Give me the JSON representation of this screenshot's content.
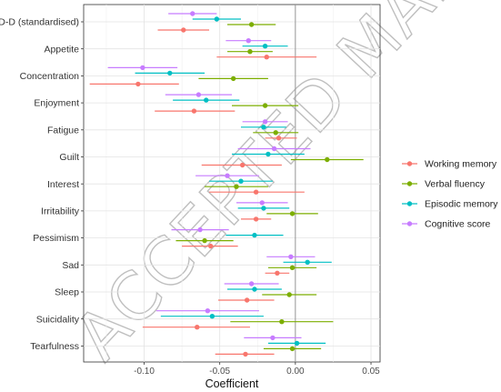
{
  "chart_data": {
    "type": "scatter",
    "xlabel": "Coefficient",
    "xlim": [
      -0.14,
      0.056
    ],
    "x_ticks": [
      "-0.10",
      "-0.05",
      "0.00",
      "0.05"
    ],
    "x_tick_values": [
      -0.1,
      -0.05,
      0.0,
      0.05
    ],
    "reference_line": 0.0,
    "legend_position": "right",
    "categories": [
      "D-D (standardised)",
      "Appetite",
      "Concentration",
      "Enjoyment",
      "Fatigue",
      "Guilt",
      "Interest",
      "Irritability",
      "Pessimism",
      "Sad",
      "Sleep",
      "Suicidality",
      "Tearfulness"
    ],
    "series": [
      {
        "name": "Working memory",
        "color": "#F8766D",
        "estimate": [
          -0.074,
          -0.019,
          -0.104,
          -0.067,
          -0.011,
          -0.035,
          -0.026,
          -0.026,
          -0.056,
          -0.012,
          -0.032,
          -0.065,
          -0.033
        ],
        "lower": [
          -0.091,
          -0.052,
          -0.136,
          -0.093,
          -0.02,
          -0.062,
          -0.057,
          -0.036,
          -0.075,
          -0.02,
          -0.051,
          -0.101,
          -0.053
        ],
        "upper": [
          -0.057,
          0.014,
          -0.077,
          -0.04,
          0.001,
          -0.009,
          0.006,
          -0.016,
          -0.038,
          -0.004,
          -0.014,
          -0.03,
          -0.014
        ]
      },
      {
        "name": "Verbal fluency",
        "color": "#7CAE00",
        "estimate": [
          -0.029,
          -0.03,
          -0.041,
          -0.02,
          -0.013,
          0.021,
          -0.039,
          -0.002,
          -0.06,
          -0.002,
          -0.004,
          -0.009,
          -0.002
        ]
      },
      {
        "name": "Episodic memory",
        "color": "#00BFC4",
        "estimate": [
          -0.052,
          -0.02,
          -0.083,
          -0.059,
          -0.021,
          -0.018,
          -0.036,
          -0.021,
          -0.027,
          0.008,
          -0.027,
          -0.055,
          0.001
        ]
      },
      {
        "name": "Cognitive score",
        "color": "#C77CFF",
        "estimate": [
          -0.068,
          -0.031,
          -0.101,
          -0.064,
          -0.02,
          -0.014,
          -0.045,
          -0.022,
          -0.063,
          -0.003,
          -0.029,
          -0.058,
          -0.015
        ]
      }
    ]
  },
  "watermark": "ACCEPTED MANUSCRIPT"
}
